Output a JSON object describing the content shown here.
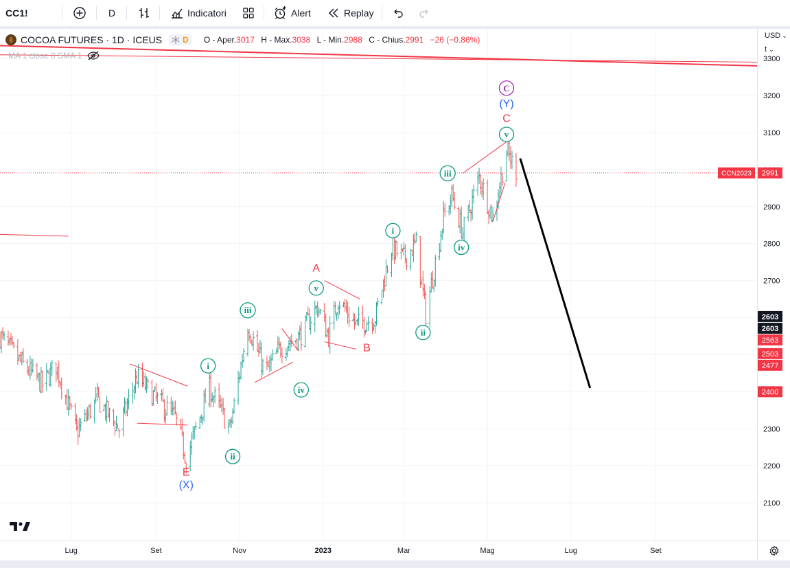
{
  "toolbar": {
    "symbol": "CC1!",
    "interval": "D",
    "indicators_label": "Indicatori",
    "alert_label": "Alert",
    "replay_label": "Replay"
  },
  "legend": {
    "title": "COCOA FUTURES · 1D · ICEUS",
    "flag_badge": "D",
    "o_label": "O - Aper.",
    "o_value": "3017",
    "h_label": "H - Max.",
    "h_value": "3038",
    "l_label": "L - Min.",
    "l_value": "2988",
    "c_label": "C - Chius.",
    "c_value": "2991",
    "change": "−26 (−0.86%)"
  },
  "ma_label": "MA 1 close 0 SMA 1",
  "axis": {
    "currency": "USD",
    "unit": "t"
  },
  "colors": {
    "up": "#26a69a",
    "down": "#ef5350",
    "wave_green": "#089981",
    "wave_red": "#f23645",
    "wave_blue": "#2962ff",
    "wave_purple": "#9c27b0",
    "price_line": "#f23645"
  },
  "chart_data": {
    "type": "ohlc",
    "title": "COCOA FUTURES · 1D · ICEUS",
    "ylim": [
      2000,
      3380
    ],
    "y_ticks": [
      2100,
      2200,
      2300,
      2400,
      2500,
      2600,
      2700,
      2800,
      2900,
      3000,
      3100,
      3200,
      3300
    ],
    "x_ticks": [
      "Lug",
      "Set",
      "Nov",
      "2023",
      "Mar",
      "Mag",
      "Lug",
      "Set"
    ],
    "x_tick_dates": [
      "2022-07-01",
      "2022-09-01",
      "2022-11-01",
      "2023-01-01",
      "2023-03-01",
      "2023-05-01",
      "2023-07-01",
      "2023-09-01"
    ],
    "x_range": [
      "2022-05-10",
      "2023-11-14"
    ],
    "grid": true,
    "price_tags": [
      {
        "label": "CCN2023",
        "value": 2991,
        "text": "2991",
        "style": "red"
      },
      {
        "value": 2603,
        "text": "2603",
        "style": "black"
      },
      {
        "value": 2603,
        "text": "2603",
        "style": "black"
      },
      {
        "value": 2563,
        "text": "2563",
        "style": "red"
      },
      {
        "value": 2503,
        "text": "2503",
        "style": "red"
      },
      {
        "value": 2477,
        "text": "2477",
        "style": "red"
      },
      {
        "value": 2400,
        "text": "2400",
        "style": "red"
      }
    ],
    "anchors": [
      [
        "2022-05-10",
        2550
      ],
      [
        "2022-05-25",
        2480
      ],
      [
        "2022-06-10",
        2420
      ],
      [
        "2022-06-20",
        2470
      ],
      [
        "2022-07-05",
        2290
      ],
      [
        "2022-07-20",
        2380
      ],
      [
        "2022-08-05",
        2300
      ],
      [
        "2022-08-18",
        2440
      ],
      [
        "2022-09-01",
        2380
      ],
      [
        "2022-09-15",
        2330
      ],
      [
        "2022-09-23",
        2220
      ],
      [
        "2022-10-10",
        2410
      ],
      [
        "2022-10-25",
        2300
      ],
      [
        "2022-11-07",
        2580
      ],
      [
        "2022-11-20",
        2450
      ],
      [
        "2022-12-01",
        2520
      ],
      [
        "2022-12-15",
        2550
      ],
      [
        "2022-12-28",
        2630
      ],
      [
        "2023-01-05",
        2550
      ],
      [
        "2023-01-12",
        2650
      ],
      [
        "2023-01-25",
        2580
      ],
      [
        "2023-02-08",
        2600
      ],
      [
        "2023-02-20",
        2790
      ],
      [
        "2023-03-01",
        2760
      ],
      [
        "2023-03-10",
        2800
      ],
      [
        "2023-03-17",
        2610
      ],
      [
        "2023-03-30",
        2870
      ],
      [
        "2023-04-05",
        2930
      ],
      [
        "2023-04-13",
        2830
      ],
      [
        "2023-04-25",
        2980
      ],
      [
        "2023-05-05",
        2870
      ],
      [
        "2023-05-15",
        3050
      ],
      [
        "2023-05-23",
        2991
      ]
    ],
    "projection": [
      [
        "2023-05-25",
        3030
      ],
      [
        "2023-07-15",
        2410
      ]
    ],
    "trendlines": [
      {
        "p1": [
          "2022-05-08",
          3335
        ],
        "p2": [
          "2023-11-14",
          3280
        ],
        "width": 2
      },
      {
        "p1": [
          "2022-05-08",
          3310
        ],
        "p2": [
          "2023-11-14",
          3290
        ],
        "width": 1
      },
      {
        "p1": [
          "2022-05-08",
          2825
        ],
        "p2": [
          "2022-06-29",
          2820
        ],
        "width": 1
      },
      {
        "p1": [
          "2022-08-13",
          2475
        ],
        "p2": [
          "2022-09-24",
          2415
        ],
        "width": 1
      },
      {
        "p1": [
          "2022-08-18",
          2315
        ],
        "p2": [
          "2022-09-24",
          2310
        ],
        "width": 1
      },
      {
        "p1": [
          "2022-11-12",
          2425
        ],
        "p2": [
          "2022-12-10",
          2480
        ],
        "width": 1
      },
      {
        "p1": [
          "2022-12-02",
          2570
        ],
        "p2": [
          "2022-12-14",
          2510
        ],
        "width": 1
      },
      {
        "p1": [
          "2023-01-02",
          2700
        ],
        "p2": [
          "2023-01-28",
          2650
        ],
        "width": 1
      },
      {
        "p1": [
          "2023-01-02",
          2535
        ],
        "p2": [
          "2023-01-25",
          2515
        ],
        "width": 1
      },
      {
        "p1": [
          "2023-04-13",
          2990
        ],
        "p2": [
          "2023-05-15",
          3075
        ],
        "width": 1
      },
      {
        "p1": [
          "2023-05-05",
          2860
        ],
        "p2": [
          "2023-05-14",
          2965
        ],
        "width": 1
      }
    ],
    "wave_labels": [
      {
        "text": "E",
        "date": "2022-09-23",
        "value": 2185,
        "color": "red",
        "circle": false
      },
      {
        "text": "(X)",
        "date": "2022-09-23",
        "value": 2150,
        "color": "blue",
        "circle": false
      },
      {
        "text": "i",
        "date": "2022-10-09",
        "value": 2470,
        "color": "green",
        "circle": true
      },
      {
        "text": "ii",
        "date": "2022-10-27",
        "value": 2225,
        "color": "green",
        "circle": true
      },
      {
        "text": "iii",
        "date": "2022-11-07",
        "value": 2620,
        "color": "green",
        "circle": true
      },
      {
        "text": "iv",
        "date": "2022-12-16",
        "value": 2405,
        "color": "green",
        "circle": true
      },
      {
        "text": "v",
        "date": "2022-12-27",
        "value": 2680,
        "color": "green",
        "circle": true
      },
      {
        "text": "A",
        "date": "2022-12-27",
        "value": 2735,
        "color": "red",
        "circle": false
      },
      {
        "text": "B",
        "date": "2023-02-02",
        "value": 2520,
        "color": "red",
        "circle": false
      },
      {
        "text": "i",
        "date": "2023-02-21",
        "value": 2835,
        "color": "green",
        "circle": true
      },
      {
        "text": "ii",
        "date": "2023-03-15",
        "value": 2560,
        "color": "green",
        "circle": true
      },
      {
        "text": "iii",
        "date": "2023-04-02",
        "value": 2990,
        "color": "green",
        "circle": true
      },
      {
        "text": "iv",
        "date": "2023-04-12",
        "value": 2790,
        "color": "green",
        "circle": true
      },
      {
        "text": "v",
        "date": "2023-05-15",
        "value": 3095,
        "color": "green",
        "circle": true
      },
      {
        "text": "C",
        "date": "2023-05-15",
        "value": 3140,
        "color": "red",
        "circle": false
      },
      {
        "text": "(Y)",
        "date": "2023-05-15",
        "value": 3180,
        "color": "blue",
        "circle": false
      },
      {
        "text": "C",
        "date": "2023-05-15",
        "value": 3220,
        "color": "purple",
        "circle": true
      }
    ]
  }
}
